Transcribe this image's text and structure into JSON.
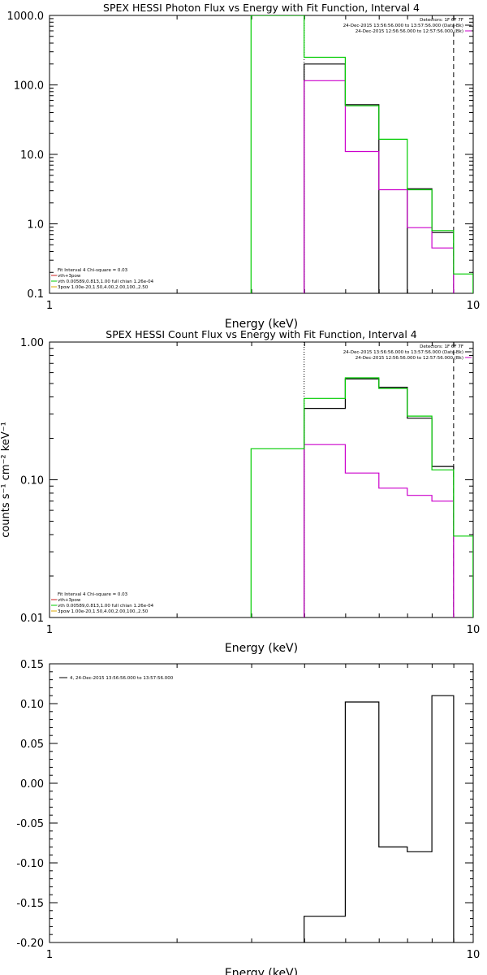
{
  "colors": {
    "black": "#000000",
    "green": "#00cc00",
    "magenta": "#cc00cc",
    "red": "#cc2222",
    "orange": "#ddaa00"
  },
  "chart_data": [
    {
      "type": "line",
      "title": "SPEX HESSI Photon Flux vs Energy with Fit Function, Interval 4",
      "xlabel": "Energy (keV)",
      "ylabel": "",
      "xscale": "log",
      "yscale": "log",
      "xlim": [
        1,
        10
      ],
      "ylim": [
        0.1,
        1000
      ],
      "xticks": [
        {
          "v": 1,
          "label": "1"
        },
        {
          "v": 10,
          "label": "10"
        }
      ],
      "yticks": [
        {
          "v": 0.1,
          "label": "0.1"
        },
        {
          "v": 1,
          "label": "1.0"
        },
        {
          "v": 10,
          "label": "10.0"
        },
        {
          "v": 100,
          "label": "100.0"
        },
        {
          "v": 1000,
          "label": "1000.0"
        }
      ],
      "info_lines": [
        "Detectors: 1F 6F 7F",
        "24-Dec-2015 13:56:56.000 to 13:57:56.000 (Data-Bk)",
        "24-Dec-2015 12:56:56.000 to 12:57:56.000 (Bk)"
      ],
      "fit_lines": [
        "Fit Interval  4    Chi-square = 0.03",
        "vth+3pow",
        "vth 0.00589,0.813,1.00   full chian 1.26e-04",
        "3pow 1.00e-20,1.50,4.00,2.00,100.,2.50"
      ],
      "edges": [
        2.99,
        3.99,
        4.99,
        5.99,
        6.99,
        7.99,
        8.99,
        9.99
      ],
      "series": [
        {
          "name": "Data-Bk",
          "color_key": "black",
          "step": true,
          "values": [
            null,
            200,
            52,
            null,
            3.2,
            0.75,
            null
          ]
        },
        {
          "name": "Bk",
          "color_key": "magenta",
          "step": true,
          "values": [
            null,
            115,
            11,
            3.1,
            0.88,
            0.45,
            null
          ]
        },
        {
          "name": "",
          "color_key": "green",
          "step": true,
          "values": [
            1000,
            250,
            50,
            16.5,
            3.1,
            0.8,
            0.19
          ]
        }
      ],
      "vlines": [
        {
          "x": 3.99,
          "style": "dotted"
        },
        {
          "x": 8.99,
          "style": "dashed"
        }
      ]
    },
    {
      "type": "line",
      "title": "SPEX HESSI Count Flux vs Energy with Fit Function, Interval 4",
      "xlabel": "Energy (keV)",
      "ylabel": "counts s⁻¹ cm⁻² keV⁻¹",
      "xscale": "log",
      "yscale": "log",
      "xlim": [
        1,
        10
      ],
      "ylim": [
        0.01,
        1
      ],
      "xticks": [
        {
          "v": 1,
          "label": "1"
        },
        {
          "v": 10,
          "label": "10"
        }
      ],
      "yticks": [
        {
          "v": 0.01,
          "label": "0.01"
        },
        {
          "v": 0.1,
          "label": "0.10"
        },
        {
          "v": 1,
          "label": "1.00"
        }
      ],
      "info_lines": [
        "Detectors: 1F 6F 7F",
        "24-Dec-2015 13:56:56.000 to 13:57:56.000 (Data-Bk)",
        "24-Dec-2015 12:56:56.000 to 12:57:56.000 (Bk)"
      ],
      "fit_lines": [
        "Fit Interval  4    Chi-square = 0.03",
        "vth+3pow",
        "vth 0.00589,0.813,1.00   full chian 1.26e-04",
        "3pow 1.00e-20,1.50,4.00,2.00,100.,2.50"
      ],
      "edges": [
        2.99,
        3.99,
        4.99,
        5.99,
        6.99,
        7.99,
        8.99,
        9.99
      ],
      "series": [
        {
          "name": "Data-Bk",
          "color_key": "black",
          "step": true,
          "values": [
            null,
            0.33,
            0.54,
            0.47,
            0.28,
            0.125,
            null
          ]
        },
        {
          "name": "Bk",
          "color_key": "magenta",
          "step": true,
          "values": [
            null,
            0.18,
            0.112,
            0.087,
            0.077,
            0.07,
            null
          ]
        },
        {
          "name": "",
          "color_key": "green",
          "step": true,
          "values": [
            0.168,
            0.39,
            0.55,
            0.46,
            0.29,
            0.118,
            0.039
          ]
        }
      ],
      "vlines": [
        {
          "x": 3.99,
          "style": "dotted"
        },
        {
          "x": 8.99,
          "style": "dashed"
        }
      ]
    },
    {
      "type": "line",
      "title": "",
      "xlabel": "Energy (keV)",
      "ylabel": "",
      "xscale": "log",
      "yscale": "linear",
      "xlim": [
        1,
        10
      ],
      "ylim": [
        -0.2,
        0.15
      ],
      "xticks": [
        {
          "v": 1,
          "label": "1"
        },
        {
          "v": 10,
          "label": "10"
        }
      ],
      "yticks": [
        {
          "v": -0.2,
          "label": "-0.20"
        },
        {
          "v": -0.15,
          "label": "-0.15"
        },
        {
          "v": -0.1,
          "label": "-0.10"
        },
        {
          "v": -0.05,
          "label": "-0.05"
        },
        {
          "v": 0,
          "label": "0.00"
        },
        {
          "v": 0.05,
          "label": "0.05"
        },
        {
          "v": 0.1,
          "label": "0.10"
        },
        {
          "v": 0.15,
          "label": "0.15"
        }
      ],
      "legend": "4, 24-Dec-2015 13:56:56.000 to 13:57:56.000",
      "edges": [
        3.99,
        4.99,
        5.99,
        6.99,
        7.99,
        8.99
      ],
      "series": [
        {
          "name": "4, 24-Dec-2015 13:56:56.000 to 13:57:56.000",
          "color_key": "black",
          "step": true,
          "values": [
            -0.167,
            0.102,
            -0.08,
            -0.086,
            0.11
          ]
        }
      ]
    }
  ]
}
